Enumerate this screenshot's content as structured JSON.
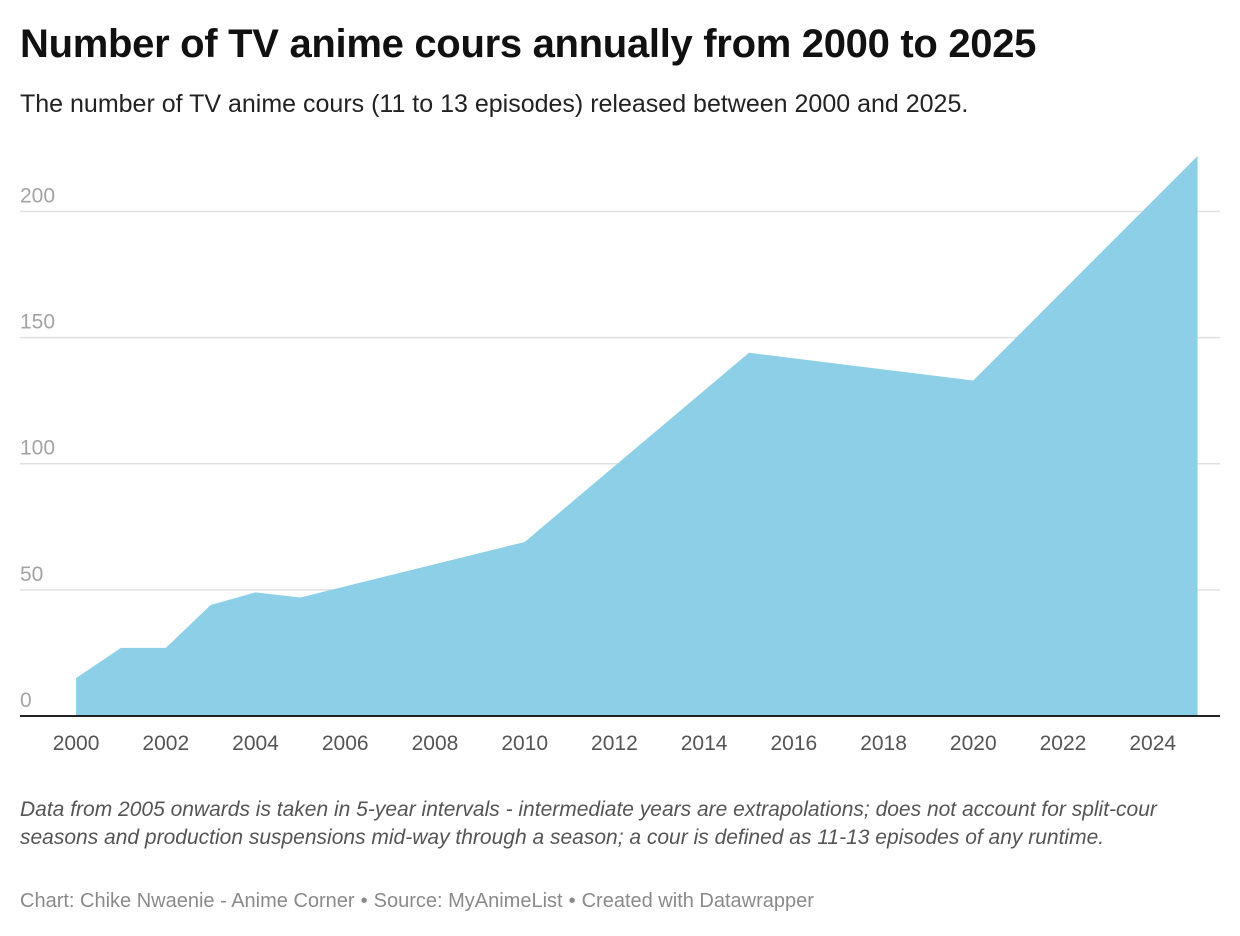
{
  "title": "Number of TV anime cours annually from 2000 to 2025",
  "subtitle": "The number of TV anime cours (11 to 13 episodes) released between 2000 and 2025.",
  "notes": "Data from 2005 onwards is taken in 5-year intervals - intermediate years are extrapolations; does not account for split-cour seasons and production suspensions mid-way through a season; a cour is defined as 11-13 episodes of any runtime.",
  "byline": {
    "chart": "Chart: Chike Nwaenie - Anime Corner",
    "source": "Source: MyAnimeList",
    "created": "Created with Datawrapper",
    "separator": "•"
  },
  "colors": {
    "area": "#8ccfe6",
    "gridline": "#e0e0e0",
    "baseline": "#222222"
  },
  "chart_data": {
    "type": "area",
    "title": "Number of TV anime cours annually from 2000 to 2025",
    "xlabel": "",
    "ylabel": "",
    "x": [
      2000,
      2001,
      2002,
      2003,
      2004,
      2005,
      2010,
      2015,
      2020,
      2025
    ],
    "values": [
      15,
      27,
      27,
      44,
      49,
      47,
      69,
      144,
      133,
      222
    ],
    "xlim": [
      1998.75,
      2025.5
    ],
    "ylim": [
      0,
      222
    ],
    "xticks": [
      "2000",
      "2002",
      "2004",
      "2006",
      "2008",
      "2010",
      "2012",
      "2014",
      "2016",
      "2018",
      "2020",
      "2022",
      "2024"
    ],
    "yticks": [
      "0",
      "50",
      "100",
      "150",
      "200"
    ],
    "grid": true,
    "legend": "none"
  }
}
